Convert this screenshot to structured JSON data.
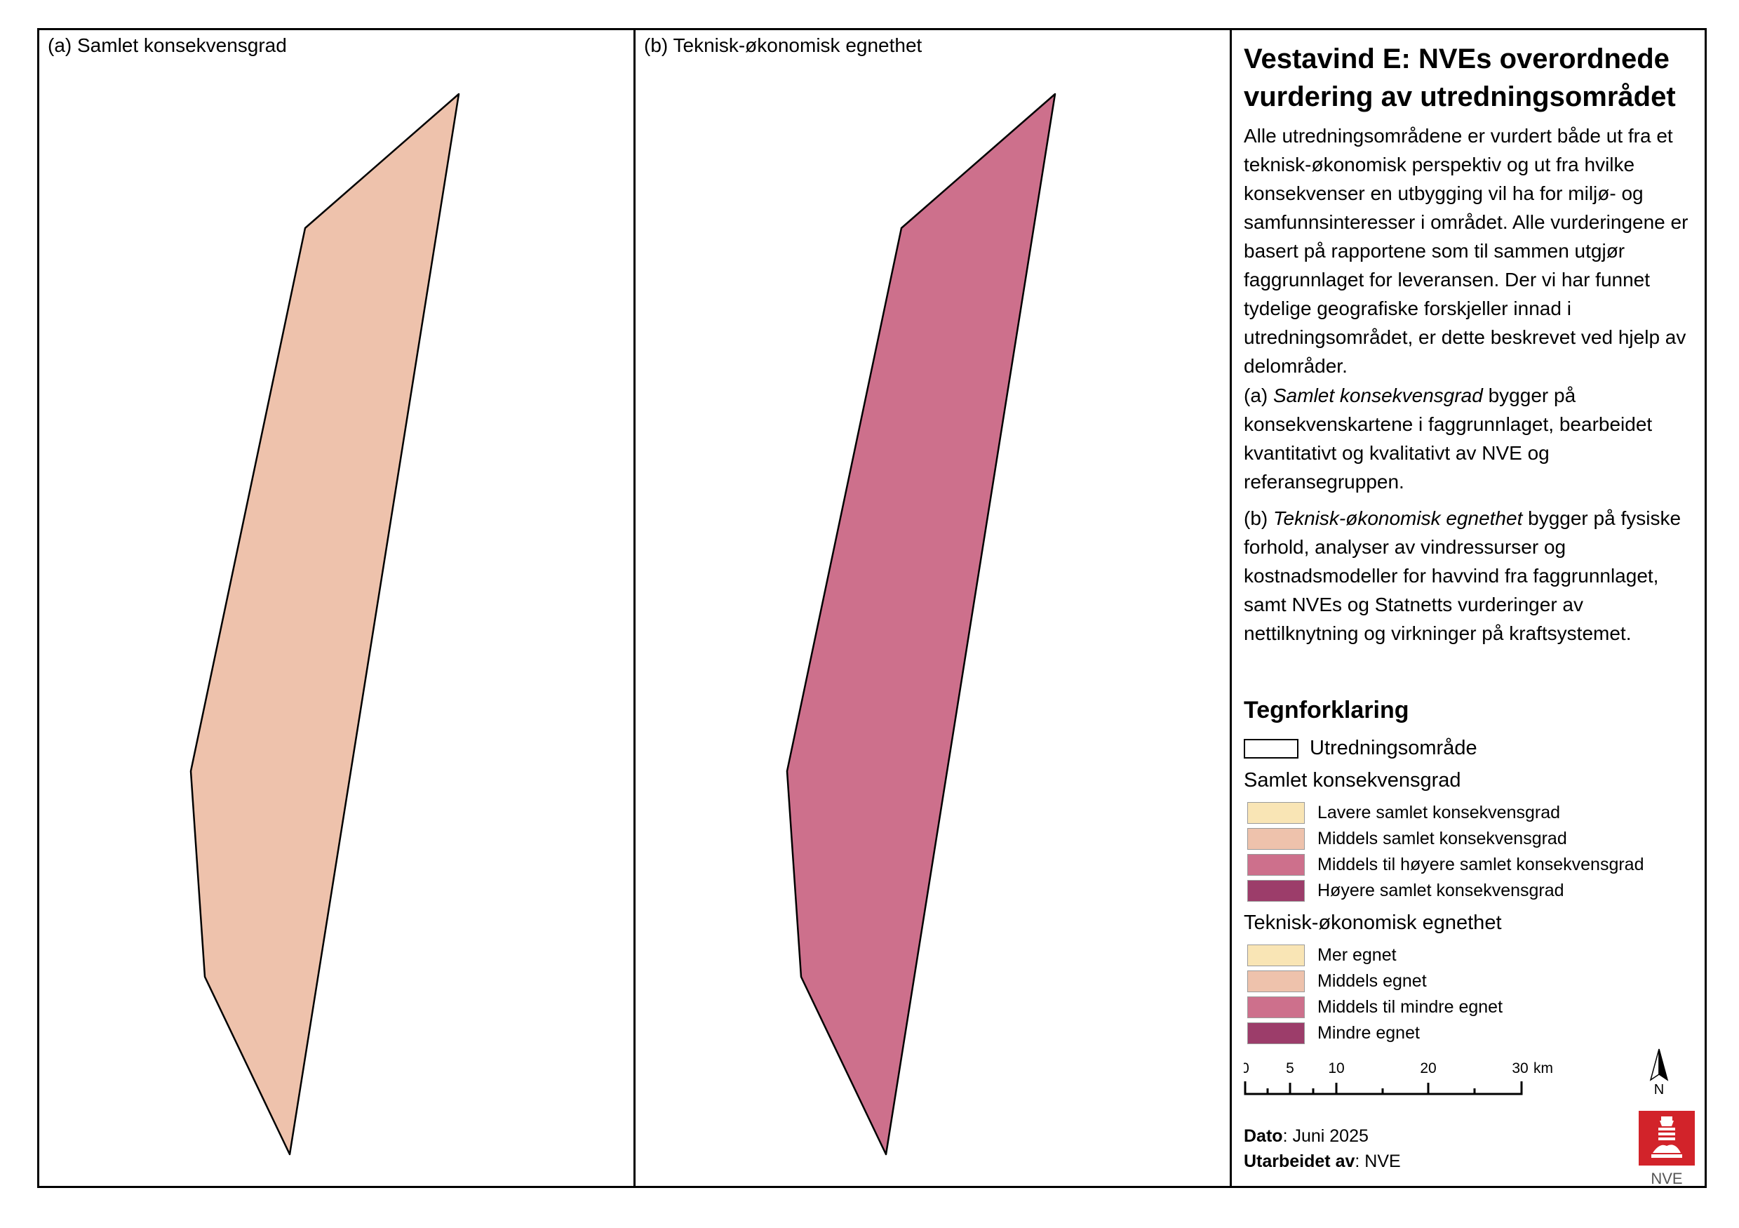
{
  "panels": {
    "a": {
      "title": "(a) Samlet konsekvensgrad",
      "fill_color": "#eec2ac"
    },
    "b": {
      "title": "(b) Teknisk-økonomisk egnethet",
      "fill_color": "#cd708c"
    }
  },
  "info": {
    "title": "Vestavind E: NVEs overordnede vurdering av utredningsområdet",
    "para1": "Alle utredningsområdene er vurdert både ut fra et teknisk-økonomisk perspektiv og ut fra hvilke konsekvenser en utbygging vil ha for miljø- og samfunnsinteresser i området. Alle vurderingene er basert på rapportene som til sammen utgjør faggrunnlaget for leveransen. Der vi har funnet tydelige geografiske forskjeller innad i utredningsområdet, er dette beskrevet ved hjelp av delområder.",
    "para2_prefix": "(a) ",
    "para2_italic": "Samlet konsekvensgrad",
    "para2_rest": " bygger på konsekvenskartene i faggrunnlaget, bearbeidet kvantitativt og kvalitativt av NVE og referansegruppen.",
    "para3_prefix": "(b) ",
    "para3_italic": "Teknisk-økonomisk egnethet",
    "para3_rest": " bygger på fysiske forhold, analyser av vindressurser og kostnadsmodeller for havvind fra faggrunnlaget, samt NVEs og Statnetts vurderinger av nettilknytning og virkninger på kraftsystemet."
  },
  "legend": {
    "title": "Tegnforklaring",
    "area_label": "Utredningsområde",
    "group1_title": "Samlet konsekvensgrad",
    "group1_items": [
      {
        "label": "Lavere samlet konsekvensgrad",
        "color": "#f9e5b5"
      },
      {
        "label": "Middels samlet konsekvensgrad",
        "color": "#eec2ac"
      },
      {
        "label": "Middels til høyere samlet konsekvensgrad",
        "color": "#cd708c"
      },
      {
        "label": "Høyere samlet konsekvensgrad",
        "color": "#9c3d6a"
      }
    ],
    "group2_title": "Teknisk-økonomisk egnethet",
    "group2_items": [
      {
        "label": "Mer egnet",
        "color": "#f9e5b5"
      },
      {
        "label": "Middels egnet",
        "color": "#eec2ac"
      },
      {
        "label": "Middels til mindre egnet",
        "color": "#cd708c"
      },
      {
        "label": "Mindre egnet",
        "color": "#9c3d6a"
      }
    ]
  },
  "scalebar": {
    "labels": [
      "0",
      "5",
      "10",
      "20",
      "30"
    ],
    "unit": "km"
  },
  "north_label": "N",
  "footer": {
    "dato_label": "Dato",
    "dato_value": ": Juni 2025",
    "utarbeidet_label": "Utarbeidet av",
    "utarbeidet_value": ": NVE"
  },
  "logo_text": "NVE",
  "colors": {
    "logo_red": "#d2232a"
  }
}
